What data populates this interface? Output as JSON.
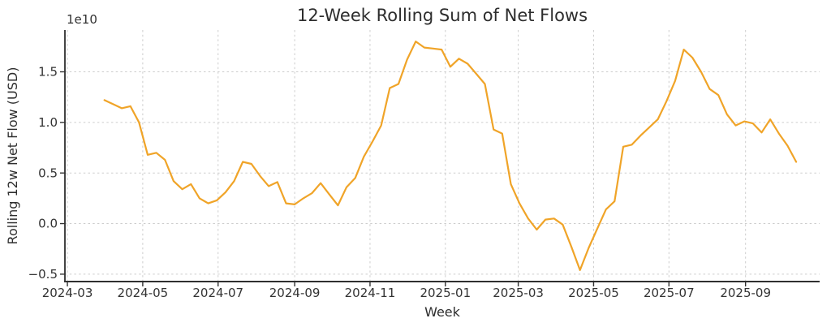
{
  "chart_data": {
    "type": "line",
    "title": "12-Week Rolling Sum of Net Flows",
    "xlabel": "Week",
    "ylabel": "Rolling 12w Net Flow (USD)",
    "y_offset_label": "1e10",
    "unit_multiplier": 10000000000.0,
    "line_color": "#F0A428",
    "grid": true,
    "grid_style": "dashed",
    "legend": "none",
    "ylim": [
      -0.573,
      1.913
    ],
    "xlim": [
      "2024-02-28",
      "2025-10-31"
    ],
    "y_ticks": [
      -0.5,
      0.0,
      0.5,
      1.0,
      1.5
    ],
    "x_ticks": [
      "2024-03",
      "2024-05",
      "2024-07",
      "2024-09",
      "2024-11",
      "2025-01",
      "2025-03",
      "2025-05",
      "2025-07",
      "2025-09"
    ],
    "series": [
      {
        "name": "Rolling 12w Net Flow",
        "x": [
          "2024-03-31",
          "2024-04-07",
          "2024-04-14",
          "2024-04-21",
          "2024-04-28",
          "2024-05-05",
          "2024-05-12",
          "2024-05-19",
          "2024-05-26",
          "2024-06-02",
          "2024-06-09",
          "2024-06-16",
          "2024-06-23",
          "2024-06-30",
          "2024-07-07",
          "2024-07-14",
          "2024-07-21",
          "2024-07-28",
          "2024-08-04",
          "2024-08-11",
          "2024-08-18",
          "2024-08-25",
          "2024-09-01",
          "2024-09-08",
          "2024-09-15",
          "2024-09-22",
          "2024-09-29",
          "2024-10-06",
          "2024-10-13",
          "2024-10-20",
          "2024-10-27",
          "2024-11-03",
          "2024-11-10",
          "2024-11-17",
          "2024-11-24",
          "2024-12-01",
          "2024-12-08",
          "2024-12-15",
          "2024-12-22",
          "2024-12-29",
          "2025-01-05",
          "2025-01-12",
          "2025-01-19",
          "2025-01-26",
          "2025-02-02",
          "2025-02-09",
          "2025-02-16",
          "2025-02-23",
          "2025-03-02",
          "2025-03-09",
          "2025-03-16",
          "2025-03-23",
          "2025-03-30",
          "2025-04-06",
          "2025-04-13",
          "2025-04-20",
          "2025-04-27",
          "2025-05-04",
          "2025-05-11",
          "2025-05-18",
          "2025-05-25",
          "2025-06-01",
          "2025-06-08",
          "2025-06-15",
          "2025-06-22",
          "2025-06-29",
          "2025-07-06",
          "2025-07-13",
          "2025-07-20",
          "2025-07-27",
          "2025-08-03",
          "2025-08-10",
          "2025-08-17",
          "2025-08-24",
          "2025-08-31",
          "2025-09-07",
          "2025-09-14",
          "2025-09-21",
          "2025-09-28",
          "2025-10-05",
          "2025-10-12"
        ],
        "values": [
          1.22,
          1.18,
          1.14,
          1.16,
          1.0,
          0.68,
          0.7,
          0.63,
          0.42,
          0.34,
          0.39,
          0.25,
          0.2,
          0.23,
          0.31,
          0.42,
          0.61,
          0.59,
          0.47,
          0.37,
          0.41,
          0.2,
          0.19,
          0.25,
          0.3,
          0.4,
          0.29,
          0.18,
          0.36,
          0.45,
          0.66,
          0.81,
          0.97,
          1.34,
          1.38,
          1.62,
          1.8,
          1.74,
          1.73,
          1.72,
          1.55,
          1.63,
          1.58,
          1.48,
          1.38,
          0.93,
          0.89,
          0.39,
          0.2,
          0.05,
          -0.06,
          0.04,
          0.05,
          -0.01,
          -0.23,
          -0.46,
          -0.24,
          -0.05,
          0.14,
          0.22,
          0.76,
          0.78,
          0.87,
          0.95,
          1.03,
          1.21,
          1.41,
          1.72,
          1.64,
          1.5,
          1.33,
          1.27,
          1.08,
          0.97,
          1.01,
          0.99,
          0.9,
          1.03,
          0.89,
          0.77,
          0.61
        ]
      }
    ]
  }
}
